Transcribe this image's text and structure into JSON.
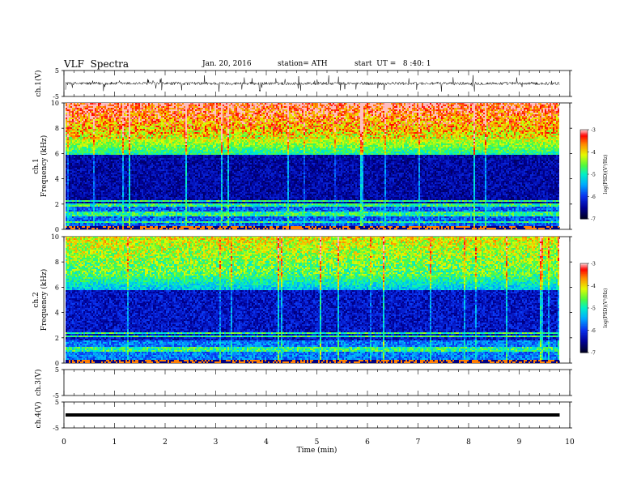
{
  "header": {
    "title": "VLF  Spectra",
    "date": "Jan. 20, 2016",
    "station": "station= ATH",
    "start": "start  UT =   8 :40: 1"
  },
  "chart_data": [
    {
      "type": "line",
      "ylabel": "ch.1(V)",
      "ylim": [
        -5,
        5
      ],
      "yticks": [
        "5",
        "-5"
      ],
      "description_values": {
        "baseline": 0,
        "typical_spike_range": [
          -2.5,
          1.8
        ]
      }
    },
    {
      "type": "heatmap",
      "ylabel_top": "ch.1",
      "ylabel": "Frequency  (kHz)",
      "ylim": [
        0,
        10
      ],
      "yticks": [
        "0",
        "2",
        "4",
        "6",
        "8",
        "10"
      ],
      "colorbar": {
        "label": "log(PSD)(V²/Hz)",
        "range": [
          -7,
          -3
        ],
        "ticks": [
          "-3",
          "-4",
          "-5",
          "-6",
          "-7"
        ]
      }
    },
    {
      "type": "heatmap",
      "ylabel_top": "ch.2",
      "ylabel": "Frequency  (kHz)",
      "ylim": [
        0,
        10
      ],
      "yticks": [
        "0",
        "2",
        "4",
        "6",
        "8",
        "10"
      ],
      "colorbar": {
        "label": "log(PSD)(V²/Hz)",
        "range": [
          -7,
          -3
        ],
        "ticks": [
          "-3",
          "-4",
          "-5",
          "-6",
          "-7"
        ]
      }
    },
    {
      "type": "line",
      "ylabel": "ch.3(V)",
      "ylim": [
        -5,
        5
      ],
      "yticks": [
        "5",
        "-5"
      ]
    },
    {
      "type": "line",
      "ylabel": "ch.4(V)",
      "ylim": [
        -5,
        5
      ],
      "yticks": [
        "5",
        "-5"
      ],
      "description_values": {
        "baseline": 0
      }
    }
  ],
  "x_axis": {
    "label": "Time  (min)",
    "xlim": [
      0,
      10
    ],
    "ticks": [
      "0",
      "1",
      "2",
      "3",
      "4",
      "5",
      "6",
      "7",
      "8",
      "9",
      "10"
    ],
    "data_end": 9.8
  },
  "colors": {
    "scale": [
      "#00005a",
      "#0000c8",
      "#0a3cff",
      "#00b4ff",
      "#00ffc8",
      "#64ff32",
      "#ffff00",
      "#ff7800",
      "#ff0000",
      "#ffdcdc"
    ]
  }
}
